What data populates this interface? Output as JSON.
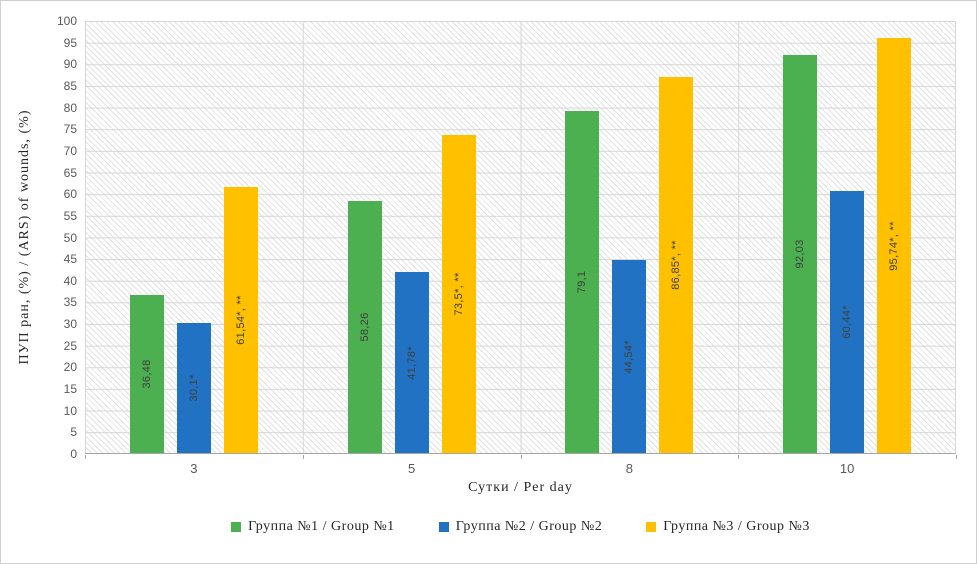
{
  "chart_data": {
    "type": "bar",
    "title": "",
    "categories": [
      "3",
      "5",
      "8",
      "10"
    ],
    "series": [
      {
        "name": "Группа №1 / Group №1",
        "color": "#4CAF50",
        "values": [
          36.48,
          58.26,
          79.1,
          92.03
        ],
        "data_labels": [
          "36,48",
          "58,26",
          "79,1",
          "92,03"
        ]
      },
      {
        "name": "Группа №2 / Group №2",
        "color": "#2272C3",
        "values": [
          30.1,
          41.78,
          44.54,
          60.44
        ],
        "data_labels": [
          "30,1*",
          "41,78*",
          "44,54*",
          "60,44*"
        ]
      },
      {
        "name": "Группа №3 / Group №3",
        "color": "#FFC000",
        "values": [
          61.54,
          73.5,
          86.85,
          95.74
        ],
        "data_labels": [
          "61,54*, **",
          "73,5*, **",
          "86,85*, **",
          "95,74*, **"
        ]
      }
    ],
    "xlabel": "Сутки / Per day",
    "ylabel": "ПУП ран, (%) / (ARS) of wounds, (%)",
    "ylim": [
      0,
      100
    ],
    "ytick_step": 5,
    "grid": "horizontal-and-vertical",
    "plot_background": "light-diagonal-hatch",
    "legend_position": "bottom",
    "data_label_rotation": -90,
    "gridline_color": "#D6D6D6",
    "axis_line_color": "#A6A6A6",
    "tick_text_color": "#595959"
  }
}
